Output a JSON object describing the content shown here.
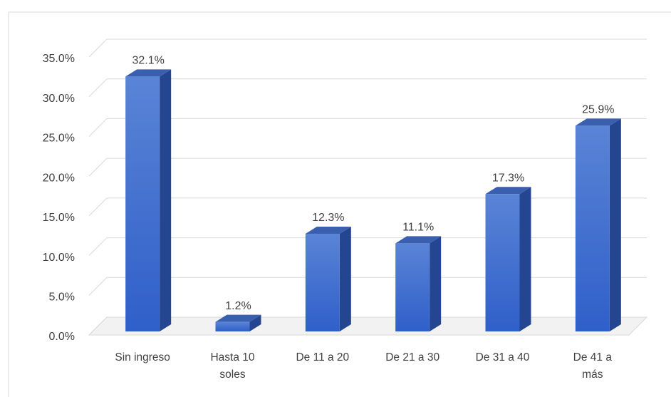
{
  "chart_data": {
    "type": "bar3d",
    "categories": [
      "Sin ingreso",
      "Hasta 10 soles",
      "De 11 a 20",
      "De 21 a 30",
      "De 31 a 40",
      "De 41 a más"
    ],
    "values": [
      32.1,
      1.2,
      12.3,
      11.1,
      17.3,
      25.9
    ],
    "value_labels": [
      "32.1%",
      "1.2%",
      "12.3%",
      "11.1%",
      "17.3%",
      "25.9%"
    ],
    "color": "#3f6fd1",
    "ylim": [
      0,
      35
    ],
    "yticks": [
      {
        "value": 0,
        "label": "0.0%"
      },
      {
        "value": 5,
        "label": "5.0%"
      },
      {
        "value": 10,
        "label": "10.0%"
      },
      {
        "value": 15,
        "label": "15.0%"
      },
      {
        "value": 20,
        "label": "20.0%"
      },
      {
        "value": 25,
        "label": "25.0%"
      },
      {
        "value": 30,
        "label": "30.0%"
      },
      {
        "value": 35,
        "label": "35.0%"
      }
    ],
    "grid": true
  }
}
